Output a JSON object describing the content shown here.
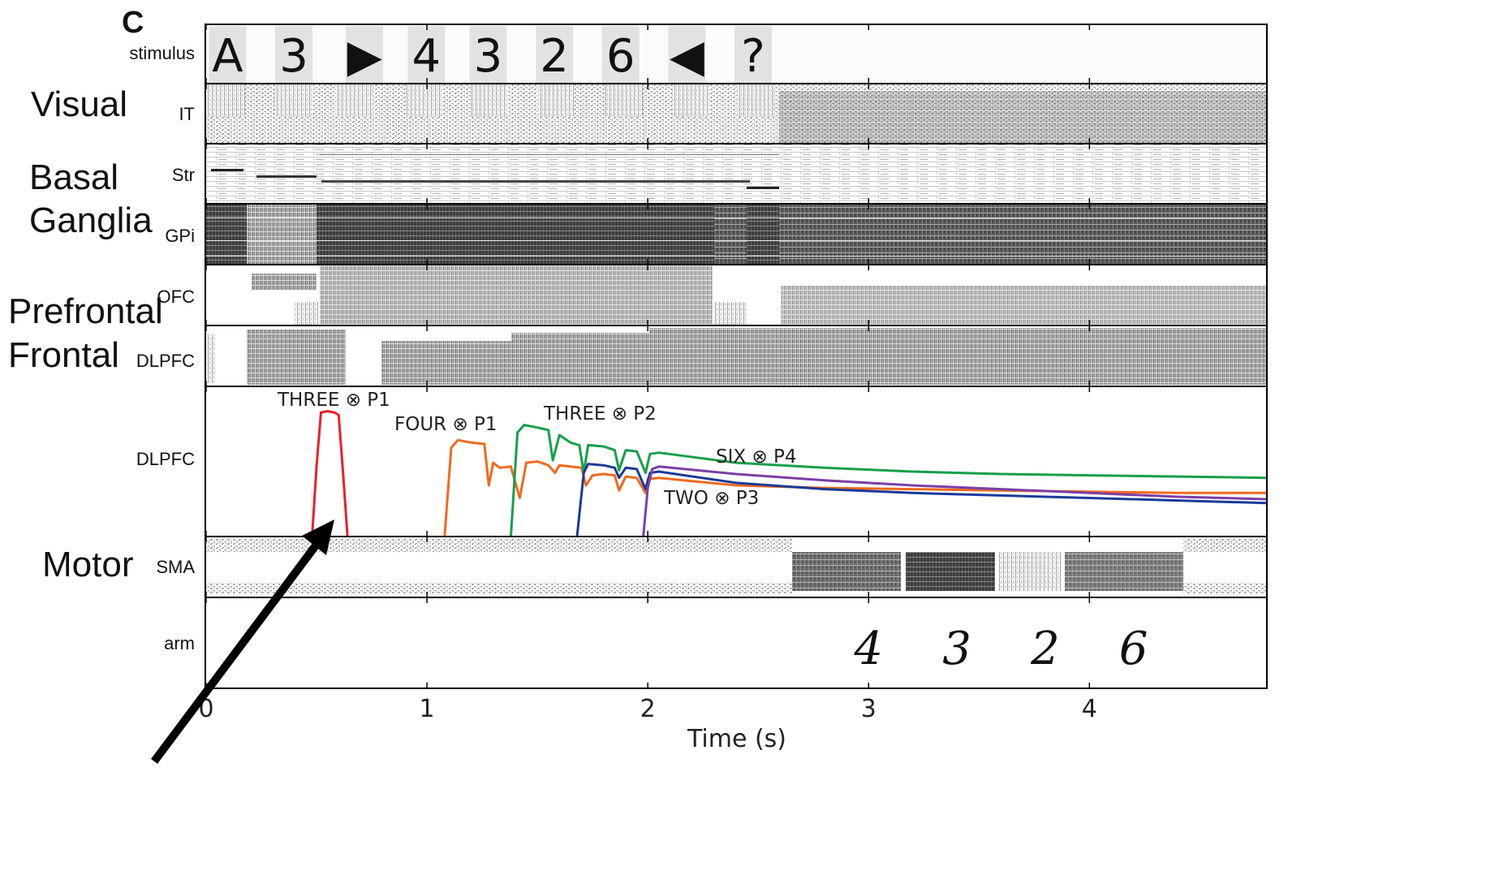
{
  "panel_letter": "C",
  "stimulus": {
    "row_label": "stimulus",
    "symbols": [
      "A",
      "3",
      "▶",
      "4",
      "3",
      "2",
      "6",
      "◀",
      "?"
    ],
    "times_s": [
      0.02,
      0.32,
      0.64,
      0.92,
      1.2,
      1.5,
      1.8,
      2.1,
      2.4
    ]
  },
  "groups": [
    {
      "label": "Visual"
    },
    {
      "label": "Basal"
    },
    {
      "label": "Ganglia"
    },
    {
      "label": "Prefrontal"
    },
    {
      "label": "Frontal"
    },
    {
      "label": "Motor"
    }
  ],
  "row_labels": {
    "it": "IT",
    "str": "Str",
    "gpi": "GPi",
    "ofc": "OFC",
    "dlpfc_raster": "DLPFC",
    "dlpfc_plot": "DLPFC",
    "sma": "SMA",
    "arm": "arm"
  },
  "arm_output": [
    "4",
    "3",
    "2",
    "6"
  ],
  "arm_output_times_s": [
    3.0,
    3.4,
    3.8,
    4.2
  ],
  "colors": {
    "red": "#e8202a",
    "orange": "#f06a1e",
    "green": "#16a04a",
    "blue": "#1a3a98",
    "purple": "#7b3fa6"
  },
  "chart_data": {
    "type": "line",
    "xlabel": "Time (s)",
    "xlim": [
      0,
      4.8
    ],
    "xticks": [
      0,
      1,
      2,
      3,
      4
    ],
    "series": [
      {
        "name": "THREE ⊗ P1",
        "color": "#e8202a",
        "x": [
          0.48,
          0.5,
          0.52,
          0.55,
          0.58,
          0.6,
          0.62,
          0.64
        ],
        "y": [
          0.0,
          0.55,
          0.98,
          0.99,
          0.98,
          0.96,
          0.5,
          0.0
        ]
      },
      {
        "name": "FOUR ⊗ P1",
        "color": "#f06a1e",
        "x": [
          1.08,
          1.11,
          1.14,
          1.2,
          1.26,
          1.28,
          1.3,
          1.33,
          1.38,
          1.42,
          1.45,
          1.5,
          1.55,
          1.58,
          1.6,
          1.65,
          1.7,
          1.72,
          1.75,
          1.8,
          1.85,
          1.87,
          1.9,
          1.95,
          1.99,
          2.0,
          2.05,
          2.4,
          2.8,
          3.2,
          3.6,
          4.0,
          4.4,
          4.8
        ],
        "y": [
          0.0,
          0.7,
          0.76,
          0.74,
          0.73,
          0.4,
          0.58,
          0.54,
          0.55,
          0.3,
          0.58,
          0.59,
          0.56,
          0.5,
          0.56,
          0.55,
          0.54,
          0.4,
          0.48,
          0.49,
          0.48,
          0.36,
          0.47,
          0.46,
          0.34,
          0.45,
          0.46,
          0.4,
          0.38,
          0.37,
          0.36,
          0.35,
          0.34,
          0.34
        ]
      },
      {
        "name": "THREE ⊗ P2",
        "color": "#16a04a",
        "x": [
          1.38,
          1.41,
          1.44,
          1.5,
          1.55,
          1.57,
          1.6,
          1.65,
          1.69,
          1.71,
          1.73,
          1.8,
          1.85,
          1.87,
          1.9,
          1.95,
          1.99,
          2.01,
          2.05,
          2.4,
          2.8,
          3.2,
          3.6,
          4.0,
          4.4,
          4.8
        ],
        "y": [
          0.0,
          0.82,
          0.88,
          0.86,
          0.84,
          0.6,
          0.8,
          0.74,
          0.72,
          0.5,
          0.72,
          0.71,
          0.68,
          0.52,
          0.68,
          0.67,
          0.5,
          0.65,
          0.66,
          0.58,
          0.54,
          0.51,
          0.49,
          0.48,
          0.47,
          0.46
        ]
      },
      {
        "name": "TWO ⊗ P3",
        "color": "#1a3a98",
        "x": [
          1.68,
          1.71,
          1.73,
          1.8,
          1.85,
          1.87,
          1.9,
          1.95,
          1.99,
          2.01,
          2.05,
          2.4,
          2.8,
          3.2,
          3.6,
          4.0,
          4.4,
          4.8
        ],
        "y": [
          0.0,
          0.5,
          0.57,
          0.56,
          0.54,
          0.46,
          0.54,
          0.53,
          0.37,
          0.5,
          0.51,
          0.42,
          0.37,
          0.34,
          0.32,
          0.3,
          0.28,
          0.26
        ]
      },
      {
        "name": "SIX ⊗ P4",
        "color": "#7b3fa6",
        "x": [
          1.98,
          2.0,
          2.02,
          2.05,
          2.4,
          2.8,
          3.2,
          3.6,
          4.0,
          4.4,
          4.8
        ],
        "y": [
          0.0,
          0.38,
          0.53,
          0.55,
          0.49,
          0.44,
          0.4,
          0.37,
          0.34,
          0.31,
          0.29
        ]
      }
    ]
  }
}
